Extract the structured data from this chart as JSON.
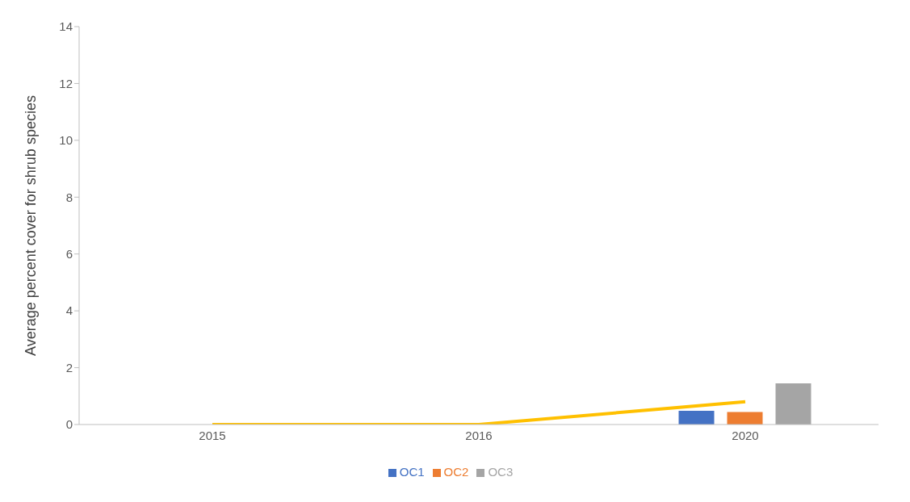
{
  "chart_data": {
    "type": "bar",
    "ylabel": "Average percent cover for shrub species",
    "categories": [
      "2015",
      "2016",
      "2020"
    ],
    "series": [
      {
        "name": "OC1",
        "color": "#4472c4",
        "values": [
          0,
          0,
          0.48
        ]
      },
      {
        "name": "OC2",
        "color": "#ed7d31",
        "values": [
          0,
          0,
          0.44
        ]
      },
      {
        "name": "OC3",
        "color": "#a5a5a5",
        "values": [
          0,
          0,
          1.45
        ]
      },
      {
        "type": "line",
        "color": "#ffc000",
        "values": [
          0,
          0,
          0.8
        ]
      }
    ],
    "ylim": [
      0,
      14
    ],
    "yticks": [
      0,
      2,
      4,
      6,
      8,
      10,
      12,
      14
    ],
    "grid": false,
    "legend": "bottom",
    "marker": "none"
  }
}
